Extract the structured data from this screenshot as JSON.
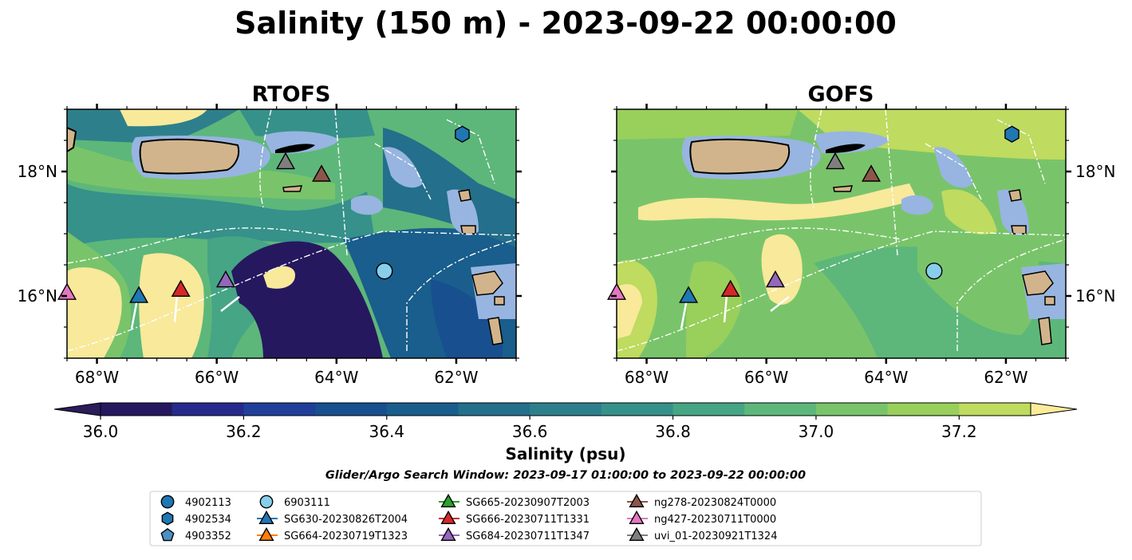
{
  "figure": {
    "title": "Salinity (150 m) - 2023-09-22 00:00:00",
    "search_window": "Glider/Argo Search Window: 2023-09-17 01:00:00 to 2023-09-22 00:00:00"
  },
  "colors": {
    "land": "#d2b48c",
    "shallow_water": "#97b5e0",
    "colormap": [
      "#26185f",
      "#262a8c",
      "#1f3f9a",
      "#174f8f",
      "#195e8c",
      "#246f8b",
      "#2d808b",
      "#36918a",
      "#46a584",
      "#5db77a",
      "#79c46a",
      "#99cf5b",
      "#bfdb60",
      "#f8e99b"
    ],
    "colormap_under": "#2b1c5a",
    "colormap_over": "#fcec9a"
  },
  "chart_data": [
    {
      "type": "heatmap",
      "panel": "left",
      "title": "RTOFS",
      "xlim": [
        -68.5,
        -61
      ],
      "ylim": [
        15,
        19
      ],
      "x_ticks": [
        "68°W",
        "66°W",
        "64°W",
        "62°W"
      ],
      "y_ticks": [
        "18°N",
        "16°N"
      ],
      "y_tick_side": "left",
      "markers": [
        {
          "label": "4902534",
          "lon": -61.9,
          "lat": 18.6
        },
        {
          "label": "6903111",
          "lon": -63.2,
          "lat": 16.4
        },
        {
          "label": "SG630-20230826T2004",
          "lon": -67.3,
          "lat": 16.0
        },
        {
          "label": "SG666-20230711T1331",
          "lon": -66.6,
          "lat": 16.1
        },
        {
          "label": "SG684-20230711T1347",
          "lon": -65.85,
          "lat": 16.25
        },
        {
          "label": "ng278-20230824T0000",
          "lon": -64.25,
          "lat": 17.95
        },
        {
          "label": "ng427-20230711T0000",
          "lon": -68.5,
          "lat": 16.05
        },
        {
          "label": "uvi_01-20230921T1324",
          "lon": -64.85,
          "lat": 18.15
        }
      ]
    },
    {
      "type": "heatmap",
      "panel": "right",
      "title": "GOFS",
      "xlim": [
        -68.5,
        -61
      ],
      "ylim": [
        15,
        19
      ],
      "x_ticks": [
        "68°W",
        "66°W",
        "64°W",
        "62°W"
      ],
      "y_ticks": [
        "18°N",
        "16°N"
      ],
      "y_tick_side": "right",
      "markers": [
        {
          "label": "4902534",
          "lon": -61.9,
          "lat": 18.6
        },
        {
          "label": "6903111",
          "lon": -63.2,
          "lat": 16.4
        },
        {
          "label": "SG630-20230826T2004",
          "lon": -67.3,
          "lat": 16.0
        },
        {
          "label": "SG666-20230711T1331",
          "lon": -66.6,
          "lat": 16.1
        },
        {
          "label": "SG684-20230711T1347",
          "lon": -65.85,
          "lat": 16.25
        },
        {
          "label": "ng278-20230824T0000",
          "lon": -64.25,
          "lat": 17.95
        },
        {
          "label": "ng427-20230711T0000",
          "lon": -68.5,
          "lat": 16.05
        },
        {
          "label": "uvi_01-20230921T1324",
          "lon": -64.85,
          "lat": 18.15
        }
      ]
    }
  ],
  "colorbar": {
    "label": "Salinity (psu)",
    "range": [
      36.0,
      37.3
    ],
    "ticks": [
      "36.0",
      "36.2",
      "36.4",
      "36.6",
      "36.8",
      "37.0",
      "37.2"
    ],
    "extend": "both"
  },
  "legend": {
    "placement": "bottom-center",
    "entries": [
      {
        "label": "4902113",
        "marker": "circle",
        "color": "#1f77b4",
        "line": false
      },
      {
        "label": "4902534",
        "marker": "hexagon",
        "color": "#1f77b4",
        "line": false
      },
      {
        "label": "4903352",
        "marker": "pentagon",
        "color": "#4a90c4",
        "line": false
      },
      {
        "label": "6903111",
        "marker": "circle",
        "color": "#87ceeb",
        "line": false
      },
      {
        "label": "SG630-20230826T2004",
        "marker": "triangle",
        "color": "#1f77b4",
        "line": true
      },
      {
        "label": "SG664-20230719T1323",
        "marker": "triangle",
        "color": "#ff7f0e",
        "line": true
      },
      {
        "label": "SG665-20230907T2003",
        "marker": "triangle",
        "color": "#2ca02c",
        "line": true
      },
      {
        "label": "SG666-20230711T1331",
        "marker": "triangle",
        "color": "#d62728",
        "line": true
      },
      {
        "label": "SG684-20230711T1347",
        "marker": "triangle",
        "color": "#9467bd",
        "line": true
      },
      {
        "label": "ng278-20230824T0000",
        "marker": "triangle",
        "color": "#8c564b",
        "line": true
      },
      {
        "label": "ng427-20230711T0000",
        "marker": "triangle",
        "color": "#e377c2",
        "line": true
      },
      {
        "label": "uvi_01-20230921T1324",
        "marker": "triangle",
        "color": "#7f7f7f",
        "line": true
      }
    ]
  }
}
